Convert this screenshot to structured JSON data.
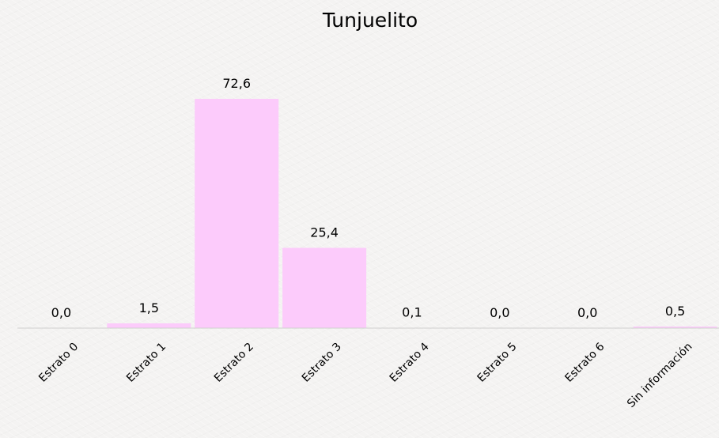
{
  "chart_data": {
    "type": "bar",
    "title": "Tunjuelito",
    "categories": [
      "Estrato 0",
      "Estrato 1",
      "Estrato 2",
      "Estrato 3",
      "Estrato 4",
      "Estrato 5",
      "Estrato 6",
      "Sin información"
    ],
    "values": [
      0.0,
      1.5,
      72.6,
      25.4,
      0.1,
      0.0,
      0.0,
      0.5
    ],
    "data_labels": [
      "0,0",
      "1,5",
      "72,6",
      "25,4",
      "0,1",
      "0,0",
      "0,0",
      "0,5"
    ],
    "xlabel": "",
    "ylabel": "",
    "ylim": [
      0,
      72.6
    ],
    "grid": false,
    "legend": "none",
    "colors": {
      "bar": "#fccbfb",
      "axis": "#cfcfcf",
      "text": "#000000"
    }
  }
}
